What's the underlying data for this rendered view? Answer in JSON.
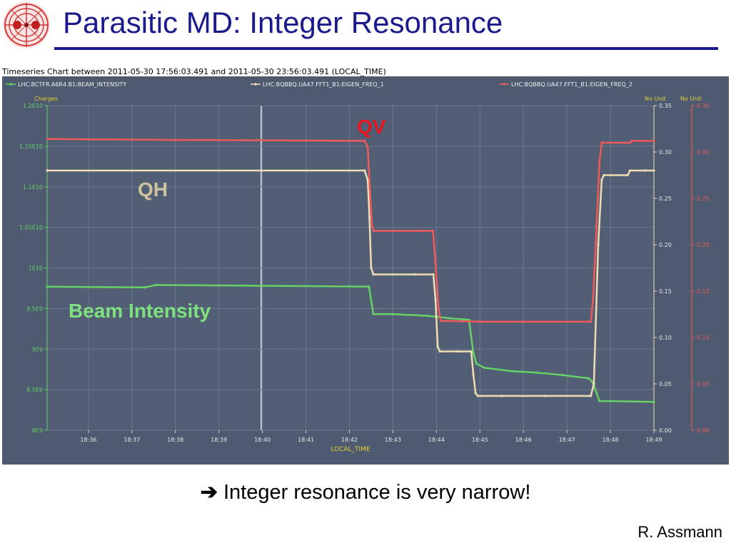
{
  "slide": {
    "title": "Parasitic MD: Integer Resonance",
    "note_arrow": "➔",
    "note": "Integer resonance is very narrow!",
    "author": "R. Assmann"
  },
  "colors": {
    "title": "#1a1a8c",
    "chart_background": "#4e5a70",
    "plot_background": "#515e74",
    "grid": "#6b778c",
    "beam_intensity": "#66d166",
    "eigen_freq_1": "#f0ddb4",
    "eigen_freq_2": "#f05a5a",
    "axis_text": "#e6e6e6",
    "label_yellow": "#e0d030"
  },
  "chart_data": {
    "type": "line",
    "title": "Timeseries Chart between 2011-05-30 17:56:03.491 and 2011-05-30 23:56:03.491 (LOCAL_TIME)",
    "xlabel": "LOCAL_TIME",
    "x_ticks": [
      "18:36",
      "18:37",
      "18:38",
      "18:39",
      "18:40",
      "18:41",
      "18:42",
      "18:43",
      "18:44",
      "18:45",
      "18:46",
      "18:47",
      "18:48",
      "18:49"
    ],
    "x_range_min": [
      35.05,
      49.0
    ],
    "cursor_x_min": 39.97,
    "grid": true,
    "left_axis": {
      "label": "Charges",
      "range": [
        8000000000.0,
        12000000000.0
      ],
      "ticks": [
        "8E9",
        "8.5E9",
        "9E9",
        "9.5E9",
        "1E10",
        "1.05E10",
        "1.1E10",
        "1.15E10",
        "1.2E10"
      ]
    },
    "right_axis_1": {
      "label": "No Unit",
      "range": [
        0.0,
        0.35
      ],
      "ticks": [
        "0.00",
        "0.05",
        "0.10",
        "0.15",
        "0.20",
        "0.25",
        "0.30",
        "0.35"
      ]
    },
    "right_axis_2": {
      "label": "No Unit",
      "range": [
        0.0,
        0.35
      ],
      "ticks": [
        "0.00",
        "0.05",
        "0.10",
        "0.15",
        "0.20",
        "0.25",
        "0.30",
        "0.35"
      ]
    },
    "series": [
      {
        "name": "LHC.BCTFR.A6R4.B1:BEAM_INTENSITY",
        "axis": "left",
        "x": [
          35.05,
          37.3,
          37.55,
          42.45,
          42.5,
          42.55,
          43.0,
          43.8,
          44.3,
          44.75,
          44.85,
          44.92,
          45.1,
          45.7,
          46.3,
          46.9,
          47.5,
          47.58,
          47.62,
          47.75,
          48.0,
          49.0
        ],
        "y": [
          9770000000.0,
          9760000000.0,
          9790000000.0,
          9770000000.0,
          9600000000.0,
          9430000000.0,
          9430000000.0,
          9410000000.0,
          9380000000.0,
          9360000000.0,
          8950000000.0,
          8820000000.0,
          8770000000.0,
          8730000000.0,
          8710000000.0,
          8680000000.0,
          8640000000.0,
          8600000000.0,
          8550000000.0,
          8360000000.0,
          8360000000.0,
          8350000000.0
        ]
      },
      {
        "name": "LHC.BQBBQ.UA47.FFT1_B1:EIGEN_FREQ_1",
        "axis": "right",
        "x": [
          35.05,
          42.35,
          42.42,
          42.46,
          42.5,
          42.55,
          43.5,
          43.93,
          43.98,
          44.03,
          44.08,
          44.5,
          44.8,
          44.85,
          44.9,
          44.95,
          45.5,
          46.5,
          47.55,
          47.62,
          47.72,
          47.8,
          47.85,
          48.4,
          48.45,
          48.8,
          49.0
        ],
        "y": [
          0.28,
          0.28,
          0.27,
          0.23,
          0.175,
          0.168,
          0.168,
          0.168,
          0.14,
          0.09,
          0.085,
          0.085,
          0.085,
          0.06,
          0.04,
          0.037,
          0.037,
          0.037,
          0.037,
          0.05,
          0.2,
          0.27,
          0.275,
          0.275,
          0.28,
          0.28,
          0.28
        ]
      },
      {
        "name": "LHC.BQBBQ.UA47.FFT1_B1:EIGEN_FREQ_2",
        "axis": "right2",
        "x": [
          35.05,
          38.0,
          42.35,
          42.42,
          42.47,
          42.52,
          42.56,
          43.6,
          43.92,
          43.98,
          44.05,
          44.1,
          45.0,
          46.0,
          47.55,
          47.6,
          47.68,
          47.75,
          47.8,
          48.45,
          48.5,
          48.8,
          49.0
        ],
        "y": [
          0.314,
          0.313,
          0.312,
          0.305,
          0.26,
          0.22,
          0.215,
          0.215,
          0.215,
          0.18,
          0.13,
          0.118,
          0.117,
          0.117,
          0.117,
          0.14,
          0.22,
          0.29,
          0.31,
          0.31,
          0.312,
          0.312,
          0.312
        ]
      }
    ],
    "annotations": [
      {
        "text": "QV",
        "color": "#e8141e"
      },
      {
        "text": "QH",
        "color": "#cfc2a0"
      },
      {
        "text": "Beam Intensity",
        "color": "#7ee07e"
      }
    ]
  }
}
